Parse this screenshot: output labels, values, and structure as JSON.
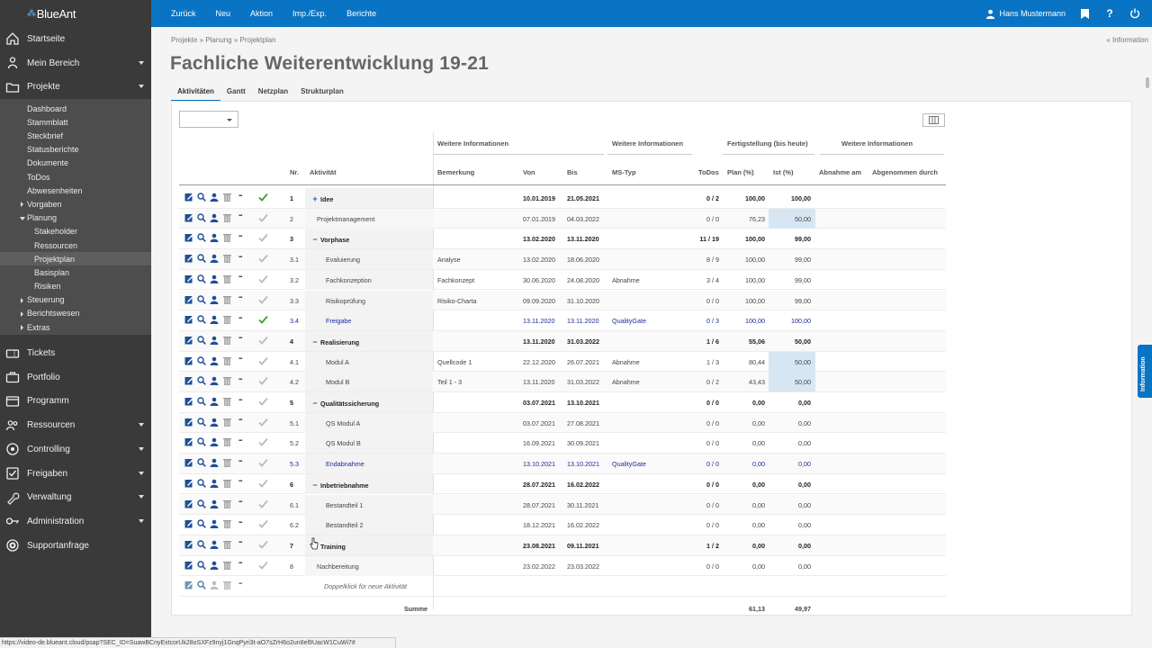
{
  "logo": "BlueAnt",
  "sidebar": {
    "main_top": [
      {
        "label": "Startseite",
        "icon": "home-icon",
        "caret": false
      },
      {
        "label": "Mein Bereich",
        "icon": "person-icon",
        "caret": true
      },
      {
        "label": "Projekte",
        "icon": "folder-icon",
        "caret": true
      }
    ],
    "sub_items": [
      {
        "label": "Dashboard",
        "level": 1,
        "tri": false
      },
      {
        "label": "Stammblatt",
        "level": 1,
        "tri": false
      },
      {
        "label": "Steckbrief",
        "level": 1,
        "tri": false
      },
      {
        "label": "Statusberichte",
        "level": 1,
        "tri": false
      },
      {
        "label": "Dokumente",
        "level": 1,
        "tri": false
      },
      {
        "label": "ToDos",
        "level": 1,
        "tri": false
      },
      {
        "label": "Abwesenheiten",
        "level": 1,
        "tri": false
      },
      {
        "label": "Vorgaben",
        "level": 1,
        "tri": "closed"
      },
      {
        "label": "Planung",
        "level": 1,
        "tri": "open"
      },
      {
        "label": "Stakeholder",
        "level": 2,
        "tri": false
      },
      {
        "label": "Ressourcen",
        "level": 2,
        "tri": false
      },
      {
        "label": "Projektplan",
        "level": 2,
        "tri": false,
        "active": true
      },
      {
        "label": "Basisplan",
        "level": 2,
        "tri": false
      },
      {
        "label": "Risiken",
        "level": 2,
        "tri": false
      },
      {
        "label": "Steuerung",
        "level": 1,
        "tri": "closed"
      },
      {
        "label": "Berichtswesen",
        "level": 1,
        "tri": "closed"
      },
      {
        "label": "Extras",
        "level": 1,
        "tri": "closed"
      }
    ],
    "main_bottom": [
      {
        "label": "Tickets",
        "icon": "ticket-icon",
        "caret": false
      },
      {
        "label": "Portfolio",
        "icon": "portfolio-icon",
        "caret": false
      },
      {
        "label": "Programm",
        "icon": "program-icon",
        "caret": false
      },
      {
        "label": "Ressourcen",
        "icon": "people-icon",
        "caret": true
      },
      {
        "label": "Controlling",
        "icon": "controlling-icon",
        "caret": true
      },
      {
        "label": "Freigaben",
        "icon": "approval-icon",
        "caret": true
      },
      {
        "label": "Verwaltung",
        "icon": "wrench-icon",
        "caret": true
      },
      {
        "label": "Administration",
        "icon": "key-icon",
        "caret": true
      },
      {
        "label": "Supportanfrage",
        "icon": "support-icon",
        "caret": false
      }
    ]
  },
  "topbar": {
    "menu": [
      "Zurück",
      "Neu",
      "Aktion",
      "Imp./Exp.",
      "Berichte"
    ],
    "user": "Hans Mustermann"
  },
  "breadcrumb": "Projekte  »  Planung  »  Projektplan",
  "info_link": "« Information",
  "page_title": "Fachliche Weiterentwicklung 19-21",
  "tabs": [
    "Aktivitäten",
    "Gantt",
    "Netzplan",
    "Strukturplan"
  ],
  "table": {
    "groups": [
      "Weitere Informationen",
      "Weitere Informationen",
      "Fertigstellung (bis heute)",
      "Weitere Informationen"
    ],
    "headers": [
      "Nr.",
      "Aktivität",
      "Bemerkung",
      "Von",
      "Bis",
      "MS-Typ",
      "ToDos",
      "Plan (%)",
      "Ist (%)",
      "Abnahme am",
      "Abgenommen durch"
    ],
    "rows": [
      {
        "nr": "1",
        "name": "Idee",
        "toggle": "+",
        "level": 0,
        "bold": true,
        "bem": "",
        "von": "10.01.2019",
        "bis": "21.05.2021",
        "ms": "",
        "todos": "0 / 2",
        "plan": "100,00",
        "ist": "100,00",
        "green": true,
        "hl": false,
        "mile": false
      },
      {
        "nr": "2",
        "name": "Projektmanagement",
        "toggle": "",
        "level": 1,
        "bold": false,
        "bem": "",
        "von": "07.01.2019",
        "bis": "04.03.2022",
        "ms": "",
        "todos": "0 / 0",
        "plan": "76,23",
        "ist": "50,00",
        "green": false,
        "hl": true,
        "mile": false
      },
      {
        "nr": "3",
        "name": "Vorphase",
        "toggle": "−",
        "level": 0,
        "bold": true,
        "bem": "",
        "von": "13.02.2020",
        "bis": "13.11.2020",
        "ms": "",
        "todos": "11 / 19",
        "plan": "100,00",
        "ist": "99,00",
        "green": false,
        "hl": false,
        "mile": false
      },
      {
        "nr": "3.1",
        "name": "Evaluierung",
        "toggle": "",
        "level": 2,
        "bold": false,
        "bem": "Analyse",
        "von": "13.02.2020",
        "bis": "18.06.2020",
        "ms": "",
        "todos": "8 / 9",
        "plan": "100,00",
        "ist": "99,00",
        "green": false,
        "hl": false,
        "mile": false
      },
      {
        "nr": "3.2",
        "name": "Fachkonzeption",
        "toggle": "",
        "level": 2,
        "bold": false,
        "bem": "Fachkonzept",
        "von": "30.06.2020",
        "bis": "24.08.2020",
        "ms": "Abnahme",
        "todos": "3 / 4",
        "plan": "100,00",
        "ist": "99,00",
        "green": false,
        "hl": false,
        "mile": false
      },
      {
        "nr": "3.3",
        "name": "Risikoprüfung",
        "toggle": "",
        "level": 2,
        "bold": false,
        "bem": "Risiko-Charta",
        "von": "09.09.2020",
        "bis": "31.10.2020",
        "ms": "",
        "todos": "0 / 0",
        "plan": "100,00",
        "ist": "99,00",
        "green": false,
        "hl": false,
        "mile": false
      },
      {
        "nr": "3.4",
        "name": "Freigabe",
        "toggle": "",
        "level": 2,
        "bold": false,
        "bem": "",
        "von": "13.11.2020",
        "bis": "13.11.2020",
        "ms": "QualityGate",
        "todos": "0 / 3",
        "plan": "100,00",
        "ist": "100,00",
        "green": true,
        "hl": false,
        "mile": true
      },
      {
        "nr": "4",
        "name": "Realisierung",
        "toggle": "−",
        "level": 0,
        "bold": true,
        "bem": "",
        "von": "13.11.2020",
        "bis": "31.03.2022",
        "ms": "",
        "todos": "1 / 6",
        "plan": "55,06",
        "ist": "50,00",
        "green": false,
        "hl": false,
        "mile": false
      },
      {
        "nr": "4.1",
        "name": "Modul A",
        "toggle": "",
        "level": 2,
        "bold": false,
        "bem": "Quellcode 1",
        "von": "22.12.2020",
        "bis": "26.07.2021",
        "ms": "Abnahme",
        "todos": "1 / 3",
        "plan": "80,44",
        "ist": "50,00",
        "green": false,
        "hl": true,
        "mile": false
      },
      {
        "nr": "4.2",
        "name": "Modul B",
        "toggle": "",
        "level": 2,
        "bold": false,
        "bem": "Teil 1 - 3",
        "von": "13.11.2020",
        "bis": "31.03.2022",
        "ms": "Abnahme",
        "todos": "0 / 2",
        "plan": "43,43",
        "ist": "50,00",
        "green": false,
        "hl": true,
        "mile": false
      },
      {
        "nr": "5",
        "name": "Qualitätssicherung",
        "toggle": "−",
        "level": 0,
        "bold": true,
        "bem": "",
        "von": "03.07.2021",
        "bis": "13.10.2021",
        "ms": "",
        "todos": "0 / 0",
        "plan": "0,00",
        "ist": "0,00",
        "green": false,
        "hl": false,
        "mile": false
      },
      {
        "nr": "5.1",
        "name": "QS Modul A",
        "toggle": "",
        "level": 2,
        "bold": false,
        "bem": "",
        "von": "03.07.2021",
        "bis": "27.08.2021",
        "ms": "",
        "todos": "0 / 0",
        "plan": "0,00",
        "ist": "0,00",
        "green": false,
        "hl": false,
        "mile": false
      },
      {
        "nr": "5.2",
        "name": "QS Modul B",
        "toggle": "",
        "level": 2,
        "bold": false,
        "bem": "",
        "von": "16.09.2021",
        "bis": "30.09.2021",
        "ms": "",
        "todos": "0 / 0",
        "plan": "0,00",
        "ist": "0,00",
        "green": false,
        "hl": false,
        "mile": false
      },
      {
        "nr": "5.3",
        "name": "Endabnahme",
        "toggle": "",
        "level": 2,
        "bold": false,
        "bem": "",
        "von": "13.10.2021",
        "bis": "13.10.2021",
        "ms": "QualityGate",
        "todos": "0 / 0",
        "plan": "0,00",
        "ist": "0,00",
        "green": false,
        "hl": false,
        "mile": true
      },
      {
        "nr": "6",
        "name": "Inbetriebnahme",
        "toggle": "−",
        "level": 0,
        "bold": true,
        "bem": "",
        "von": "28.07.2021",
        "bis": "16.02.2022",
        "ms": "",
        "todos": "0 / 0",
        "plan": "0,00",
        "ist": "0,00",
        "green": false,
        "hl": false,
        "mile": false
      },
      {
        "nr": "6.1",
        "name": "Bestandteil 1",
        "toggle": "",
        "level": 2,
        "bold": false,
        "bem": "",
        "von": "28.07.2021",
        "bis": "30.11.2021",
        "ms": "",
        "todos": "0 / 0",
        "plan": "0,00",
        "ist": "0,00",
        "green": false,
        "hl": false,
        "mile": false
      },
      {
        "nr": "6.2",
        "name": "Bestandteil 2",
        "toggle": "",
        "level": 2,
        "bold": false,
        "bem": "",
        "von": "18.12.2021",
        "bis": "16.02.2022",
        "ms": "",
        "todos": "0 / 0",
        "plan": "0,00",
        "ist": "0,00",
        "green": false,
        "hl": false,
        "mile": false
      },
      {
        "nr": "7",
        "name": "Training",
        "toggle": "+",
        "level": 0,
        "bold": true,
        "bem": "",
        "von": "23.08.2021",
        "bis": "09.11.2021",
        "ms": "",
        "todos": "1 / 2",
        "plan": "0,00",
        "ist": "0,00",
        "green": false,
        "hl": false,
        "mile": false
      },
      {
        "nr": "8",
        "name": "Nachbereitung",
        "toggle": "",
        "level": 1,
        "bold": false,
        "bem": "",
        "von": "23.02.2022",
        "bis": "23.03.2022",
        "ms": "",
        "todos": "0 / 0",
        "plan": "0,00",
        "ist": "0,00",
        "green": false,
        "hl": false,
        "mile": false
      }
    ],
    "new_placeholder": "Doppelklick für neue Aktivität",
    "sum_label": "Summe",
    "sum_plan": "61,13",
    "sum_ist": "49,97"
  },
  "info_side": "Information",
  "statusbar": "https://video-de.blueant.cloud/psap?SEC_ID=SuawBCnyExtcorUk28oSXFz9nyj1GnqPyri3t-aO7sZrH6o2un8el9UacW1CuWi7#",
  "colors": {
    "accent": "#0a74c4",
    "sidebar": "#3a3a3a",
    "milestone": "#1a2b9c",
    "highlight": "#d7e6f3",
    "check_green": "#3aa12a"
  }
}
